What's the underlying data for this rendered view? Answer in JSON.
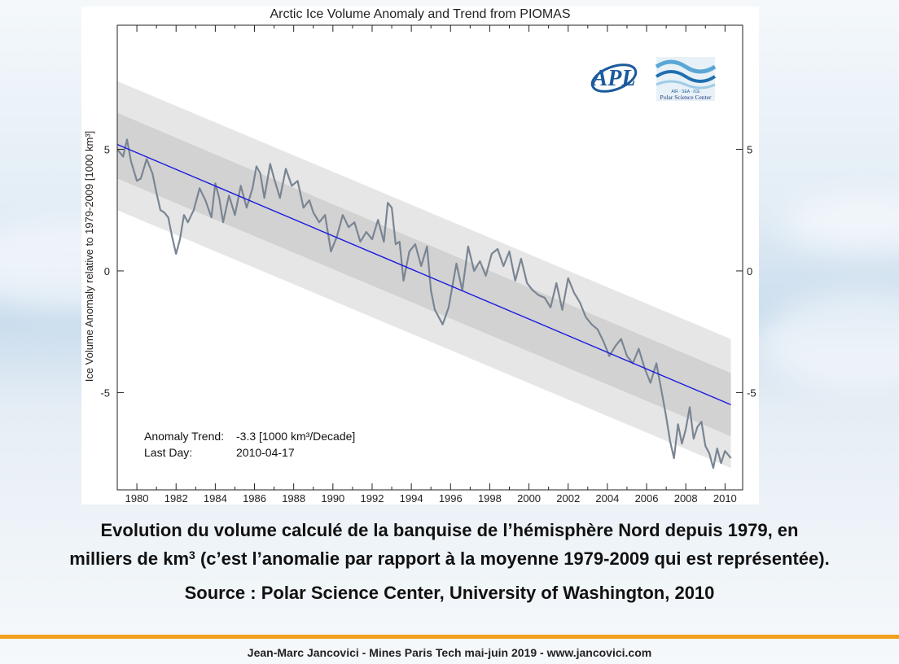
{
  "caption": {
    "line1": "Evolution du volume calculé de la banquise de l’hémisphère Nord depuis 1979, en",
    "line2_a": "milliers de km",
    "line2_sup": "3",
    "line2_b": " (c’est l’anomalie par rapport à la moyenne 1979-2009 qui est représentée).",
    "source": "Source : Polar Science Center, University of Washington, 2010"
  },
  "footer": {
    "text": "Jean-Marc Jancovici - Mines Paris Tech mai-juin 2019 - www.jancovici.com"
  },
  "colors": {
    "accent_rule": "#f2a01d",
    "series_line": "#7a8593",
    "trend_line": "#1a1adf",
    "band_outer": "#e6e6e6",
    "band_inner": "#d2d2d2"
  },
  "logos": {
    "apl": "APL",
    "psc_caption": "Polar Science Center",
    "psc_small": "AIR · SEA · ICE"
  },
  "chart_data": {
    "type": "line",
    "title": "Arctic Ice Volume Anomaly and Trend from PIOMAS",
    "xlabel": "",
    "ylabel": "Ice Volume Anomaly relative to 1979-2009 [1000 km³]",
    "xlim": [
      1979.0,
      2010.9
    ],
    "ylim": [
      -9.0,
      10.1
    ],
    "x_ticks": [
      1980,
      1982,
      1984,
      1986,
      1988,
      1990,
      1992,
      1994,
      1996,
      1998,
      2000,
      2002,
      2004,
      2006,
      2008,
      2010
    ],
    "x_tick_labels": [
      "1980",
      "1982",
      "1984",
      "1986",
      "1988",
      "1990",
      "1992",
      "1994",
      "1996",
      "1998",
      "2000",
      "2002",
      "2004",
      "2006",
      "2008",
      "2010"
    ],
    "y_ticks": [
      5,
      0,
      -5
    ],
    "y_tick_labels": [
      "5",
      "0",
      "-5"
    ],
    "grid": false,
    "annotations": {
      "trend_label": "Anomaly Trend:",
      "trend_value": "-3.3 [1000 km³/Decade]",
      "lastday_label": "Last Day:",
      "lastday_value": "2010-04-17"
    },
    "trend": {
      "x": [
        1979.0,
        2010.3
      ],
      "y": [
        5.2,
        -5.5
      ]
    },
    "bands": [
      {
        "name": "outer",
        "upper": [
          7.8,
          -2.8
        ],
        "lower": [
          2.5,
          -8.1
        ]
      },
      {
        "name": "inner",
        "upper": [
          6.5,
          -4.2
        ],
        "lower": [
          3.8,
          -6.8
        ]
      }
    ],
    "series": [
      {
        "x": [
          1979.0,
          1979.3,
          1979.5,
          1979.7,
          1980.0,
          1980.2,
          1980.5,
          1980.8,
          1981.0,
          1981.2,
          1981.4,
          1981.6,
          1981.8,
          1982.0,
          1982.2,
          1982.4,
          1982.6,
          1982.9,
          1983.2,
          1983.5,
          1983.8,
          1984.0,
          1984.2,
          1984.4,
          1984.7,
          1985.0,
          1985.3,
          1985.6,
          1985.9,
          1986.1,
          1986.3,
          1986.5,
          1986.8,
          1987.0,
          1987.3,
          1987.6,
          1987.9,
          1988.2,
          1988.5,
          1988.8,
          1989.0,
          1989.3,
          1989.6,
          1989.9,
          1990.2,
          1990.5,
          1990.8,
          1991.1,
          1991.4,
          1991.7,
          1992.0,
          1992.3,
          1992.6,
          1992.8,
          1993.0,
          1993.2,
          1993.4,
          1993.6,
          1993.9,
          1994.2,
          1994.5,
          1994.8,
          1995.0,
          1995.2,
          1995.4,
          1995.6,
          1995.9,
          1996.1,
          1996.3,
          1996.6,
          1996.9,
          1997.2,
          1997.5,
          1997.8,
          1998.1,
          1998.4,
          1998.7,
          1999.0,
          1999.3,
          1999.6,
          1999.9,
          2000.2,
          2000.5,
          2000.8,
          2001.1,
          2001.4,
          2001.7,
          2002.0,
          2002.3,
          2002.6,
          2002.9,
          2003.2,
          2003.5,
          2003.8,
          2004.1,
          2004.4,
          2004.7,
          2005.0,
          2005.3,
          2005.6,
          2005.9,
          2006.2,
          2006.5,
          2006.8,
          2007.0,
          2007.2,
          2007.4,
          2007.6,
          2007.8,
          2008.0,
          2008.2,
          2008.4,
          2008.6,
          2008.8,
          2009.0,
          2009.2,
          2009.4,
          2009.6,
          2009.8,
          2010.0,
          2010.3
        ],
        "y": [
          5.0,
          4.7,
          5.4,
          4.5,
          3.7,
          3.8,
          4.6,
          4.0,
          3.2,
          2.5,
          2.4,
          2.2,
          1.4,
          0.7,
          1.3,
          2.3,
          2.0,
          2.5,
          3.4,
          2.9,
          2.2,
          3.6,
          3.0,
          2.0,
          3.1,
          2.3,
          3.5,
          2.6,
          3.4,
          4.3,
          4.0,
          3.0,
          4.4,
          3.8,
          3.0,
          4.2,
          3.5,
          3.7,
          2.6,
          2.9,
          2.4,
          2.0,
          2.3,
          0.8,
          1.4,
          2.3,
          1.8,
          2.0,
          1.2,
          1.6,
          1.3,
          2.1,
          1.2,
          2.8,
          2.6,
          1.1,
          1.2,
          -0.4,
          0.8,
          1.1,
          0.2,
          1.0,
          -0.8,
          -1.6,
          -1.9,
          -2.2,
          -1.5,
          -0.6,
          0.3,
          -0.8,
          1.0,
          0.0,
          0.4,
          -0.2,
          0.7,
          0.9,
          0.2,
          0.8,
          -0.4,
          0.5,
          -0.5,
          -0.8,
          -1.0,
          -1.1,
          -1.5,
          -0.5,
          -1.6,
          -0.3,
          -0.9,
          -1.3,
          -1.9,
          -2.2,
          -2.4,
          -2.9,
          -3.5,
          -3.1,
          -2.8,
          -3.5,
          -3.8,
          -3.2,
          -4.0,
          -4.6,
          -3.8,
          -5.1,
          -6.0,
          -7.0,
          -7.7,
          -6.3,
          -7.1,
          -6.5,
          -5.6,
          -6.9,
          -6.4,
          -6.2,
          -7.2,
          -7.5,
          -8.1,
          -7.3,
          -7.9,
          -7.4,
          -7.7
        ]
      }
    ]
  }
}
